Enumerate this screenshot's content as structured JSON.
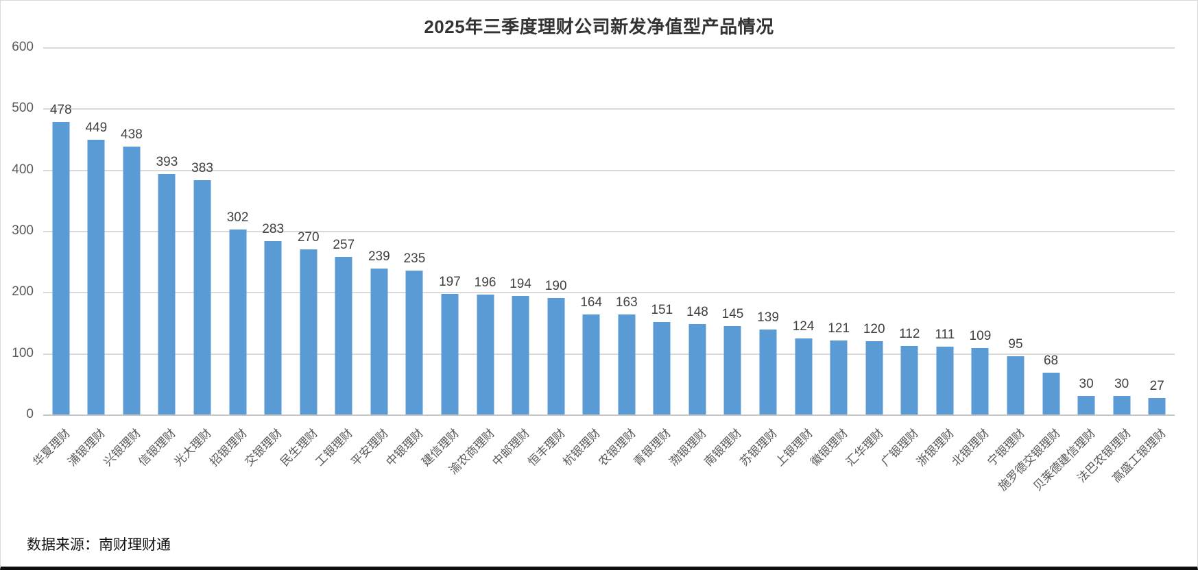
{
  "title": "2025年三季度理财公司新发净值型产品情况",
  "source": "数据来源：南财理财通",
  "colors": {
    "bar": "#5B9BD5",
    "gridline": "#D9D9D9",
    "zero_axis_line": "#C6C6C6",
    "value_label": "#404040",
    "tick_label": "#595959",
    "title_text": "#333333",
    "bottom_border": "#0D0D0D"
  },
  "chart_data": {
    "type": "bar",
    "title": "2025年三季度理财公司新发净值型产品情况",
    "categories": [
      "华夏理财",
      "浦银理财",
      "兴银理财",
      "信银理财",
      "光大理财",
      "招银理财",
      "交银理财",
      "民生理财",
      "工银理财",
      "平安理财",
      "中银理财",
      "建信理财",
      "渝农商理财",
      "中邮理财",
      "恒丰理财",
      "杭银理财",
      "农银理财",
      "青银理财",
      "渤银理财",
      "南银理财",
      "苏银理财",
      "上银理财",
      "徽银理财",
      "汇华理财",
      "广银理财",
      "浙银理财",
      "北银理财",
      "宁银理财",
      "施罗德交银理财",
      "贝莱德建信理财",
      "法巴农银理财",
      "高盛工银理财"
    ],
    "values": [
      478,
      449,
      438,
      393,
      383,
      302,
      283,
      270,
      257,
      239,
      235,
      197,
      196,
      194,
      190,
      164,
      163,
      151,
      148,
      145,
      139,
      124,
      121,
      120,
      112,
      111,
      109,
      95,
      68,
      30,
      30,
      27
    ],
    "xlabel": "",
    "ylabel": "",
    "ylim": [
      0,
      600
    ],
    "yticks": [
      0,
      100,
      200,
      300,
      400,
      500,
      600
    ],
    "grid": true,
    "legend": false,
    "value_labels": true,
    "x_tick_rotation_deg": 45
  }
}
